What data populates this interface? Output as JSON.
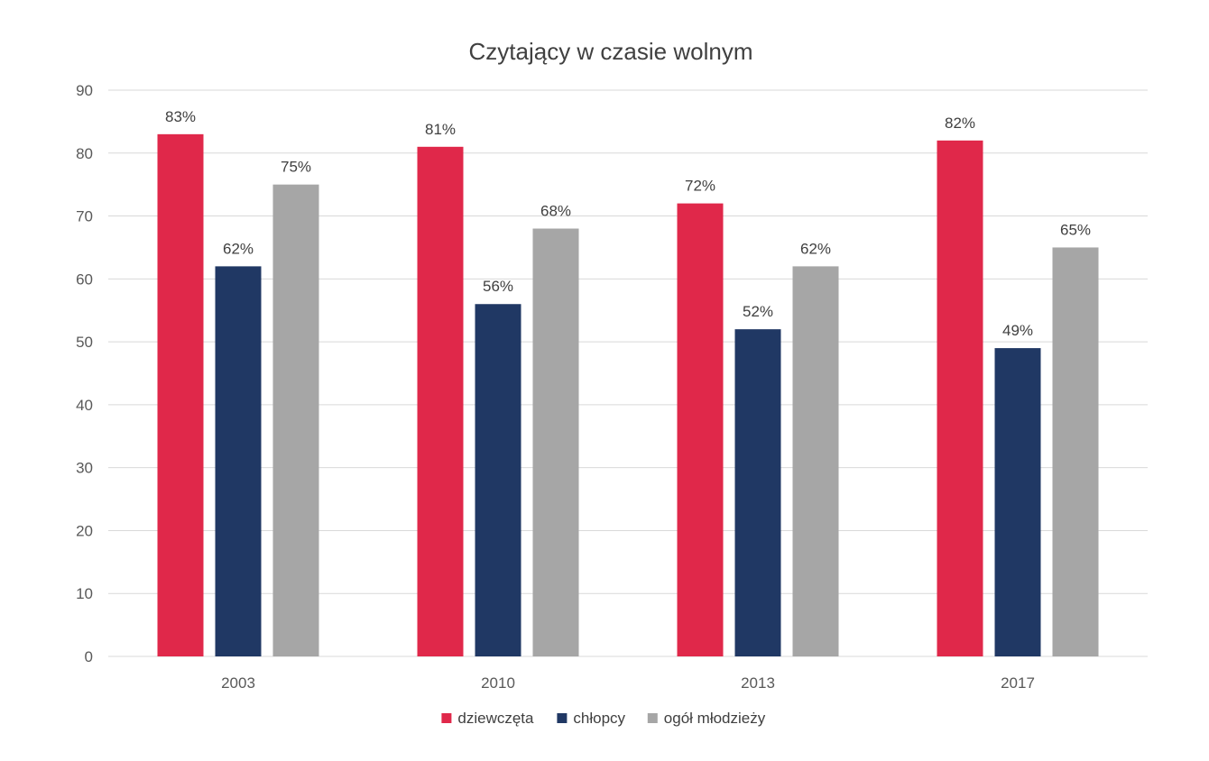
{
  "chart_data": {
    "type": "bar",
    "title": "Czytający w czasie wolnym",
    "categories": [
      "2003",
      "2010",
      "2013",
      "2017"
    ],
    "series": [
      {
        "name": "dziewczęta",
        "color": "#e0284a",
        "values": [
          83,
          81,
          72,
          82
        ],
        "labels": [
          "83%",
          "81%",
          "72%",
          "82%"
        ]
      },
      {
        "name": "chłopcy",
        "color": "#203864",
        "values": [
          62,
          56,
          52,
          49
        ],
        "labels": [
          "62%",
          "56%",
          "52%",
          "49%"
        ]
      },
      {
        "name": "ogół młodzieży",
        "color": "#a6a6a6",
        "values": [
          75,
          68,
          62,
          65
        ],
        "labels": [
          "75%",
          "68%",
          "62%",
          "65%"
        ]
      }
    ],
    "yticks": [
      "0",
      "10",
      "20",
      "30",
      "40",
      "50",
      "60",
      "70",
      "80",
      "90"
    ],
    "ylim": [
      0,
      90
    ],
    "grid": true,
    "legend_position": "bottom"
  }
}
